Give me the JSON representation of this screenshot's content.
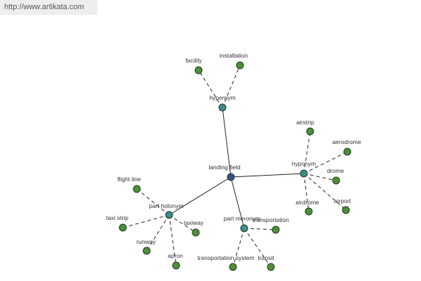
{
  "header": {
    "url": "http://www.artikata.com"
  },
  "nodes": [
    {
      "label": "landing field"
    },
    {
      "label": "hypernym"
    },
    {
      "label": "facility"
    },
    {
      "label": "installation"
    },
    {
      "label": "hyponym"
    },
    {
      "label": "airstrip"
    },
    {
      "label": "aerodrome"
    },
    {
      "label": "drome"
    },
    {
      "label": "airdrome"
    },
    {
      "label": "airport"
    },
    {
      "label": "part holonym"
    },
    {
      "label": "flight line"
    },
    {
      "label": "taxi strip"
    },
    {
      "label": "runway"
    },
    {
      "label": "apron"
    },
    {
      "label": "taxiway"
    },
    {
      "label": "part meronym"
    },
    {
      "label": "transportation"
    },
    {
      "label": "transportation system"
    },
    {
      "label": "transit"
    }
  ]
}
